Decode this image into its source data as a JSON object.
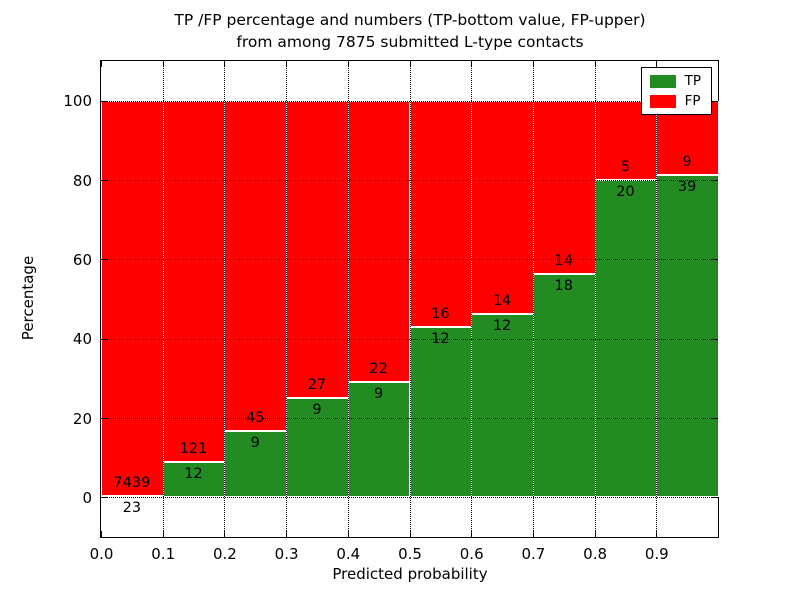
{
  "title": {
    "line1": "TP /FP percentage and numbers (TP-bottom value, FP-upper)",
    "line2": "from among 7875 submitted L-type contacts"
  },
  "chart_data": {
    "type": "bar",
    "stacked": true,
    "title": "TP /FP percentage and numbers (TP-bottom value, FP-upper) from among 7875 submitted L-type contacts",
    "xlabel": "Predicted probability",
    "ylabel": "Percentage",
    "x_tick_labels": [
      "0.0",
      "0.1",
      "0.2",
      "0.3",
      "0.4",
      "0.5",
      "0.6",
      "0.7",
      "0.8",
      "0.9"
    ],
    "y_tick_values": [
      0,
      20,
      40,
      60,
      80,
      100
    ],
    "y_tick_labels": [
      "0",
      "20",
      "40",
      "60",
      "80",
      "100"
    ],
    "xlim": [
      0.0,
      1.0
    ],
    "ylim": [
      -10,
      110
    ],
    "bin_width": 0.1,
    "categories": [
      "0.0-0.1",
      "0.1-0.2",
      "0.2-0.3",
      "0.3-0.4",
      "0.4-0.5",
      "0.5-0.6",
      "0.6-0.7",
      "0.7-0.8",
      "0.8-0.9",
      "0.9-1.0"
    ],
    "series": [
      {
        "name": "TP",
        "color": "#228b22",
        "counts": [
          23,
          12,
          9,
          9,
          9,
          12,
          12,
          18,
          20,
          39
        ]
      },
      {
        "name": "FP",
        "color": "#ff0000",
        "counts": [
          7439,
          121,
          45,
          27,
          22,
          16,
          14,
          14,
          5,
          9
        ]
      }
    ],
    "tp_percent": [
      0.31,
      9.02,
      16.67,
      25.0,
      29.03,
      42.86,
      46.15,
      56.25,
      80.0,
      81.25
    ],
    "total_contacts": 7875,
    "grid": {
      "on": true,
      "style": "dotted",
      "color": "#000000"
    },
    "legend": {
      "position": "upper right",
      "entries": [
        {
          "label": "TP",
          "color": "#228b22"
        },
        {
          "label": "FP",
          "color": "#ff0000"
        }
      ]
    }
  }
}
